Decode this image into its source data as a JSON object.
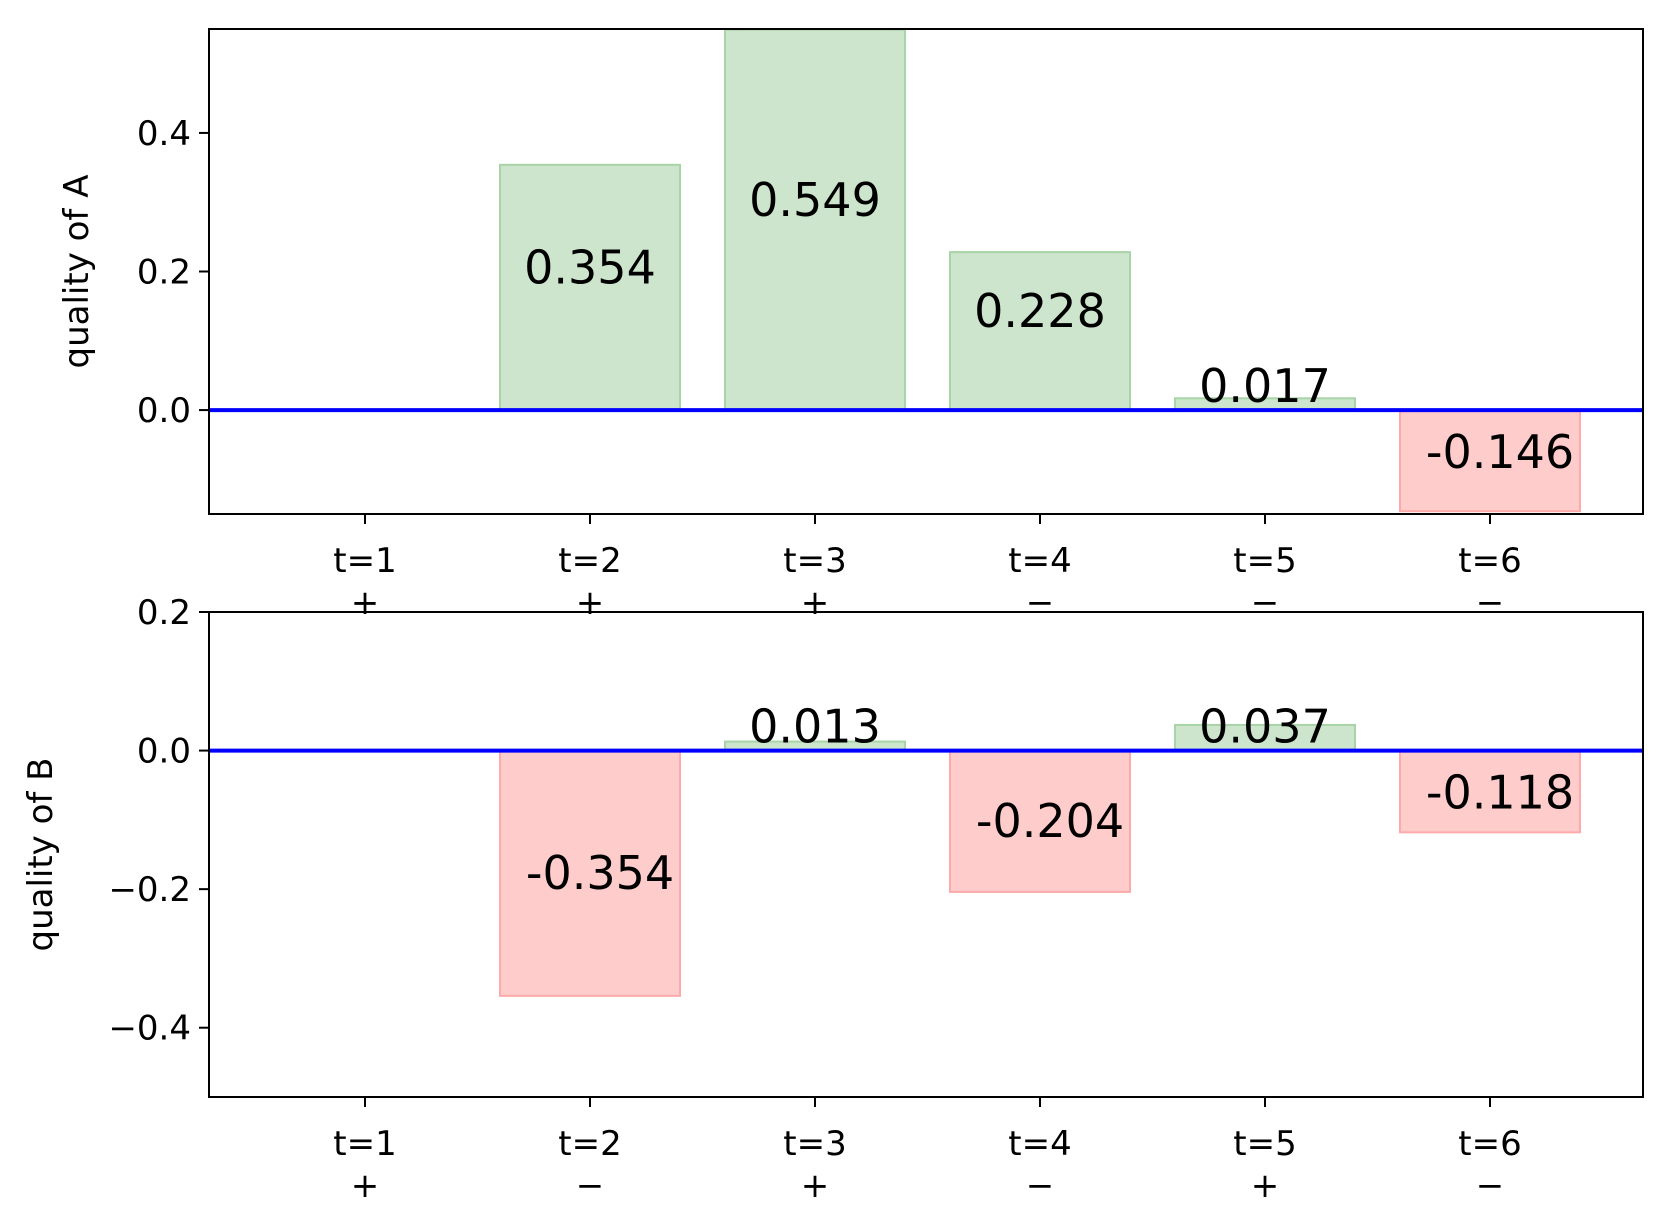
{
  "colors": {
    "positive_fill": "#cce5cc",
    "positive_edge": "#a8d4a8",
    "negative_fill": "#ffcccc",
    "negative_edge": "#ffaaaa",
    "baseline": "#0000ff"
  },
  "chart_data": [
    {
      "type": "bar",
      "ylabel": "quality of A",
      "ylim": [
        -0.15,
        0.55
      ],
      "yticks": [
        0.0,
        0.2,
        0.4
      ],
      "ytick_labels": [
        "0.0",
        "0.2",
        "0.4"
      ],
      "categories": [
        "t=1",
        "t=2",
        "t=3",
        "t=4",
        "t=5",
        "t=6"
      ],
      "signs": [
        "+",
        "+",
        "+",
        "−",
        "−",
        "−"
      ],
      "values": [
        null,
        0.354,
        0.549,
        0.228,
        0.017,
        -0.146
      ],
      "value_labels": [
        "",
        "0.354",
        "0.549",
        "0.228",
        "0.017",
        "-0.146"
      ],
      "grid": false
    },
    {
      "type": "bar",
      "ylabel": "quality of B",
      "ylim": [
        -0.5,
        0.2
      ],
      "yticks": [
        -0.4,
        -0.2,
        0.0,
        0.2
      ],
      "ytick_labels": [
        "−0.4",
        "−0.2",
        "0.0",
        "0.2"
      ],
      "categories": [
        "t=1",
        "t=2",
        "t=3",
        "t=4",
        "t=5",
        "t=6"
      ],
      "signs": [
        "+",
        "−",
        "+",
        "−",
        "+",
        "−"
      ],
      "values": [
        null,
        -0.354,
        0.013,
        -0.204,
        0.037,
        -0.118
      ],
      "value_labels": [
        "",
        "-0.354",
        "0.013",
        "-0.204",
        "0.037",
        "-0.118"
      ],
      "grid": false
    }
  ]
}
